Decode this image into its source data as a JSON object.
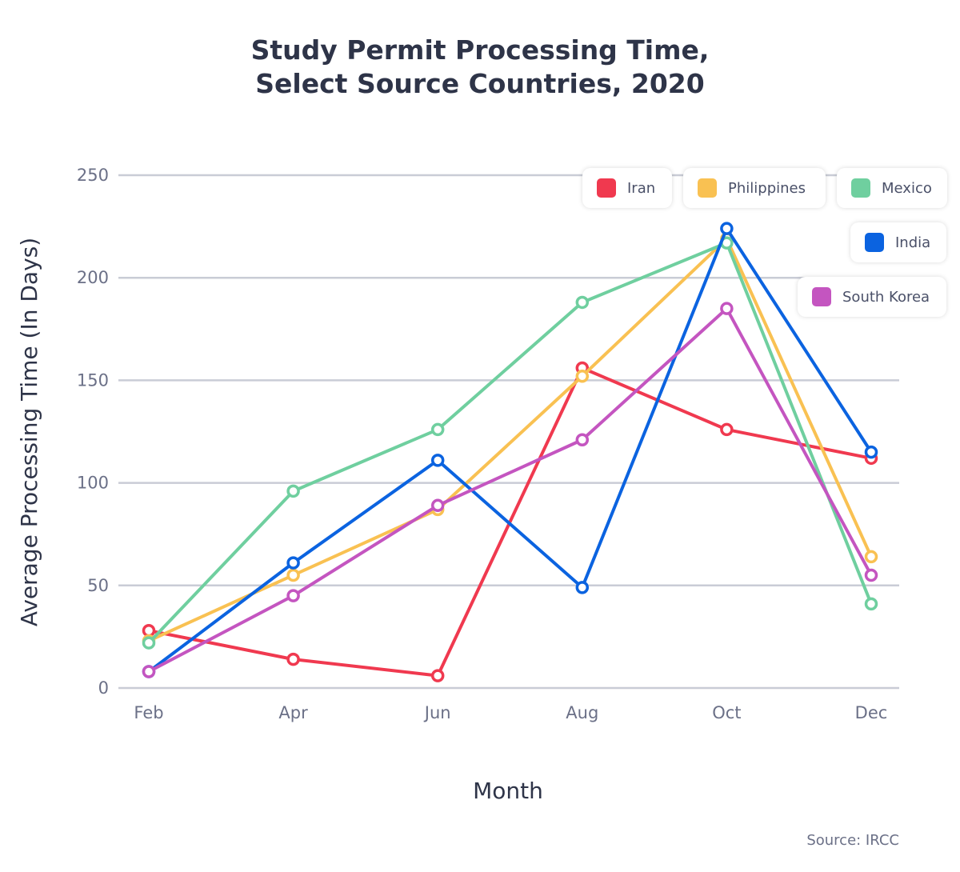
{
  "chart_data": {
    "type": "line",
    "title": [
      "Study Permit Processing Time,",
      "Select Source Countries, 2020"
    ],
    "xlabel": "Month",
    "ylabel": "Average Processing Time (In Days)",
    "categories": [
      "Feb",
      "Apr",
      "Jun",
      "Aug",
      "Oct",
      "Dec"
    ],
    "ylim": [
      0,
      250
    ],
    "yticks": [
      0,
      50,
      100,
      150,
      200,
      250
    ],
    "grid": true,
    "legend_position": "top-right",
    "series": [
      {
        "name": "Iran",
        "color": "#f0394f",
        "values": [
          28,
          14,
          6,
          156,
          126,
          112
        ]
      },
      {
        "name": "Philippines",
        "color": "#f9c152",
        "values": [
          23,
          55,
          87,
          152,
          219,
          64
        ]
      },
      {
        "name": "Mexico",
        "color": "#6fcf9f",
        "values": [
          22,
          96,
          126,
          188,
          217,
          41
        ]
      },
      {
        "name": "India",
        "color": "#0b63e0",
        "values": [
          8,
          61,
          111,
          49,
          224,
          115
        ]
      },
      {
        "name": "South Korea",
        "color": "#c455c0",
        "values": [
          8,
          45,
          89,
          121,
          185,
          55
        ]
      }
    ],
    "source": "Source: IRCC"
  }
}
